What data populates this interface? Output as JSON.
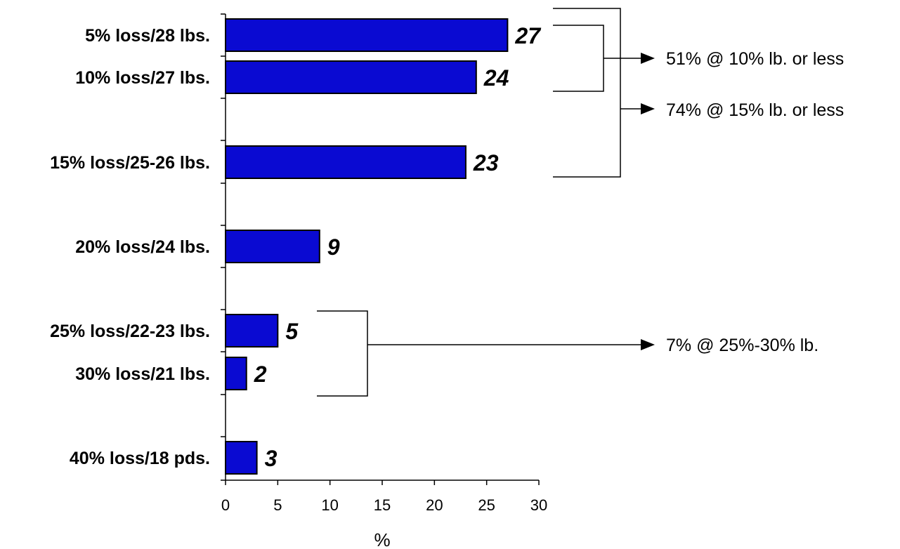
{
  "chart_data": {
    "type": "bar",
    "orientation": "horizontal",
    "categories": [
      "5% loss/28 lbs.",
      "10% loss/27 lbs.",
      "15% loss/25-26 lbs.",
      "20% loss/24 lbs.",
      "25% loss/22-23 lbs.",
      "30% loss/21 lbs.",
      "40% loss/18 pds."
    ],
    "values": [
      27,
      24,
      23,
      9,
      5,
      2,
      3
    ],
    "value_labels": [
      "27",
      "24",
      "23",
      "9",
      "5",
      "2",
      "3"
    ],
    "xlabel": "%",
    "xlim": [
      0,
      30
    ],
    "xticks": [
      "0",
      "5",
      "10",
      "15",
      "20",
      "25",
      "30"
    ],
    "bar_color": "#0a0ad2",
    "grid": false,
    "annotations": [
      {
        "text": "51% @ 10% lb. or less",
        "groups": [
          0,
          1
        ]
      },
      {
        "text": "74% @ 15% lb. or less",
        "groups": [
          0,
          1,
          2
        ]
      },
      {
        "text": "7% @ 25%-30% lb.",
        "groups": [
          4,
          5
        ]
      }
    ]
  }
}
